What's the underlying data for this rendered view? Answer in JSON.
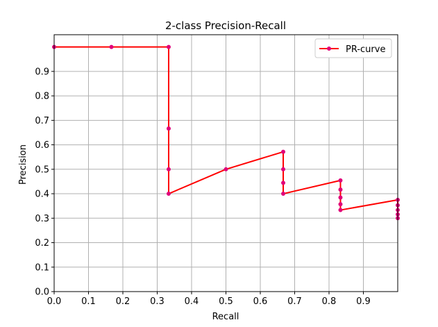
{
  "chart_data": {
    "type": "line",
    "title": "2-class Precision-Recall",
    "xlabel": "Recall",
    "ylabel": "Precision",
    "xlim": [
      0,
      1
    ],
    "ylim": [
      0,
      1.05
    ],
    "xticks": [
      "0.0",
      "0.1",
      "0.2",
      "0.3",
      "0.4",
      "0.5",
      "0.6",
      "0.7",
      "0.8",
      "0.9"
    ],
    "yticks": [
      "0.0",
      "0.1",
      "0.2",
      "0.3",
      "0.4",
      "0.5",
      "0.6",
      "0.7",
      "0.8",
      "0.9"
    ],
    "grid": true,
    "legend_position": "top-right",
    "series": [
      {
        "name": "PR-curve",
        "line_color": "#ff0000",
        "marker_color": "#e0007a",
        "x": [
          0.0,
          0.1667,
          0.3333,
          0.3333,
          0.3333,
          0.3333,
          0.5,
          0.6667,
          0.6667,
          0.6667,
          0.6667,
          0.8333,
          0.8333,
          0.8333,
          0.8333,
          0.8333,
          1.0,
          1.0,
          1.0,
          1.0,
          1.0
        ],
        "y": [
          1.0,
          1.0,
          1.0,
          0.6667,
          0.5,
          0.4,
          0.5,
          0.5714,
          0.5,
          0.4444,
          0.4,
          0.4545,
          0.4167,
          0.3846,
          0.3571,
          0.3333,
          0.375,
          0.3529,
          0.3333,
          0.3158,
          0.3
        ]
      }
    ]
  }
}
